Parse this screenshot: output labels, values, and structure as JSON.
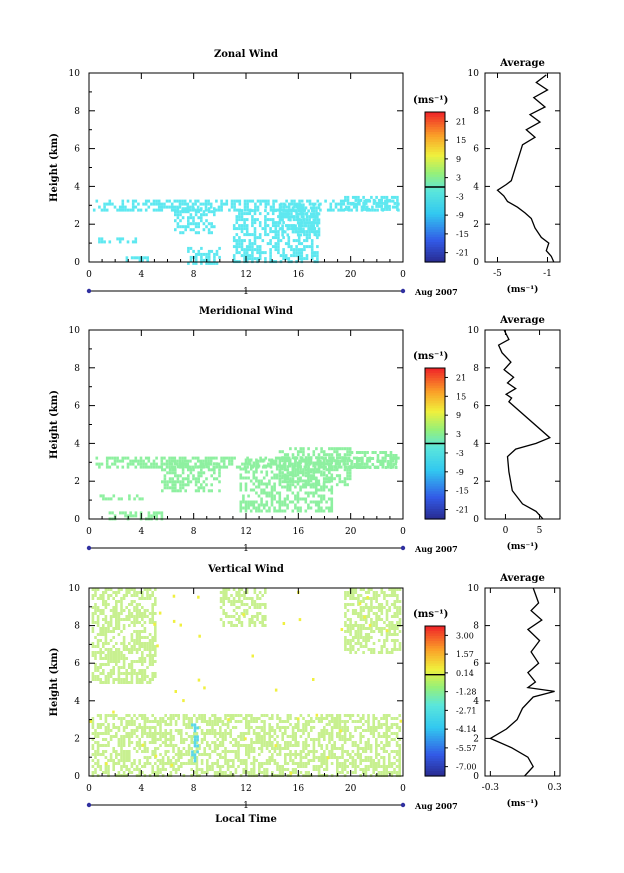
{
  "chart_data": [
    {
      "type": "heatmap",
      "title": "Zonal Wind",
      "ylabel": "Height (km)",
      "xlabel": "",
      "x_ticks": [
        "0",
        "4",
        "8",
        "12",
        "16",
        "20",
        "0"
      ],
      "y_ticks": [
        "0",
        "2",
        "4",
        "6",
        "8",
        "10"
      ],
      "xlim": [
        0,
        24
      ],
      "ylim": [
        0,
        10
      ],
      "day_label": "1",
      "date_label": "Aug 2007",
      "colorbar": {
        "unit": "(ms⁻¹)",
        "ticks": [
          "21",
          "15",
          "9",
          "3",
          "-3",
          "-9",
          "-15",
          "-21"
        ],
        "range": [
          -24,
          24
        ],
        "zero_line": 0
      },
      "color_dominant": "#5ee8f0",
      "regions": [
        {
          "x0": 0.3,
          "x1": 23.6,
          "y0": 2.7,
          "y1": 3.3
        },
        {
          "x0": 6.5,
          "x1": 9.5,
          "y0": 1.5,
          "y1": 2.9
        },
        {
          "x0": 11.0,
          "x1": 17.5,
          "y0": 0.0,
          "y1": 2.8
        },
        {
          "x0": 14.5,
          "x1": 17.5,
          "y0": 1.5,
          "y1": 3.1
        },
        {
          "x0": 0.5,
          "x1": 4.0,
          "y0": 1.0,
          "y1": 1.3
        },
        {
          "x0": 2.8,
          "x1": 4.5,
          "y0": 0.0,
          "y1": 0.3
        },
        {
          "x0": 7.5,
          "x1": 10.0,
          "y0": 0.0,
          "y1": 0.8
        },
        {
          "x0": 19.5,
          "x1": 23.5,
          "y0": 2.8,
          "y1": 3.5
        }
      ],
      "average_profile": {
        "title": "Average",
        "xlabel": "(ms⁻¹)",
        "x_ticks": [
          "-5",
          "-1"
        ],
        "xlim": [
          -6,
          0
        ],
        "points": [
          [
            -0.5,
            0
          ],
          [
            -0.7,
            0.3
          ],
          [
            -1.1,
            0.6
          ],
          [
            -0.9,
            1.0
          ],
          [
            -1.5,
            1.3
          ],
          [
            -2.0,
            1.8
          ],
          [
            -2.3,
            2.3
          ],
          [
            -2.8,
            2.6
          ],
          [
            -3.4,
            2.9
          ],
          [
            -4.2,
            3.2
          ],
          [
            -4.5,
            3.5
          ],
          [
            -5.0,
            3.8
          ],
          [
            -4.3,
            4.1
          ],
          [
            -3.9,
            4.3
          ],
          [
            -3.0,
            6.2
          ],
          [
            -2.0,
            6.6
          ],
          [
            -2.7,
            7.0
          ],
          [
            -1.6,
            7.4
          ],
          [
            -2.4,
            7.8
          ],
          [
            -1.2,
            8.2
          ],
          [
            -2.1,
            8.7
          ],
          [
            -1.0,
            9.1
          ],
          [
            -1.9,
            9.5
          ],
          [
            -1.1,
            9.9
          ]
        ]
      }
    },
    {
      "type": "heatmap",
      "title": "Meridional Wind",
      "ylabel": "Height (km)",
      "xlabel": "",
      "x_ticks": [
        "0",
        "4",
        "8",
        "12",
        "16",
        "20",
        "0"
      ],
      "y_ticks": [
        "0",
        "2",
        "4",
        "6",
        "8",
        "10"
      ],
      "xlim": [
        0,
        24
      ],
      "ylim": [
        0,
        10
      ],
      "day_label": "1",
      "date_label": "Aug 2007",
      "colorbar": {
        "unit": "(ms⁻¹)",
        "ticks": [
          "21",
          "15",
          "9",
          "3",
          "-3",
          "-9",
          "-15",
          "-21"
        ],
        "range": [
          -24,
          24
        ],
        "zero_line": 0
      },
      "color_dominant": "#8ef0a0",
      "regions": [
        {
          "x0": 0.3,
          "x1": 23.6,
          "y0": 2.8,
          "y1": 3.3
        },
        {
          "x0": 5.5,
          "x1": 10.0,
          "y0": 1.5,
          "y1": 3.0
        },
        {
          "x0": 11.5,
          "x1": 18.5,
          "y0": 0.5,
          "y1": 3.2
        },
        {
          "x0": 14.5,
          "x1": 20.0,
          "y0": 1.8,
          "y1": 3.8
        },
        {
          "x0": 1.5,
          "x1": 5.5,
          "y0": 0.0,
          "y1": 0.4
        },
        {
          "x0": 0.8,
          "x1": 4.0,
          "y0": 1.0,
          "y1": 1.3
        },
        {
          "x0": 20.0,
          "x1": 23.5,
          "y0": 2.8,
          "y1": 3.6
        }
      ],
      "average_profile": {
        "title": "Average",
        "xlabel": "(ms⁻¹)",
        "x_ticks": [
          "0",
          "5"
        ],
        "xlim": [
          -3,
          8
        ],
        "points": [
          [
            5.5,
            0
          ],
          [
            4.5,
            0.4
          ],
          [
            2.5,
            0.8
          ],
          [
            1.0,
            1.5
          ],
          [
            0.5,
            2.5
          ],
          [
            0.3,
            3.3
          ],
          [
            1.5,
            3.7
          ],
          [
            4.5,
            4.0
          ],
          [
            6.5,
            4.3
          ],
          [
            0.5,
            6.2
          ],
          [
            0.9,
            6.4
          ],
          [
            0.1,
            6.6
          ],
          [
            1.5,
            6.9
          ],
          [
            0.3,
            7.2
          ],
          [
            1.2,
            7.5
          ],
          [
            -0.2,
            7.9
          ],
          [
            0.8,
            8.3
          ],
          [
            -0.5,
            8.8
          ],
          [
            -1.0,
            9.2
          ],
          [
            0.5,
            9.5
          ],
          [
            -0.2,
            10
          ]
        ]
      }
    },
    {
      "type": "heatmap",
      "title": "Vertical Wind",
      "ylabel": "Height (km)",
      "xlabel": "Local Time",
      "x_ticks": [
        "0",
        "4",
        "8",
        "12",
        "16",
        "20",
        "0"
      ],
      "y_ticks": [
        "0",
        "2",
        "4",
        "6",
        "8",
        "10"
      ],
      "xlim": [
        0,
        24
      ],
      "ylim": [
        0,
        10
      ],
      "day_label": "1",
      "date_label": "Aug 2007",
      "colorbar": {
        "unit": "(ms⁻¹)",
        "ticks": [
          "3.00",
          "1.57",
          "0.14",
          "-1.28",
          "-2.71",
          "-4.14",
          "-5.57",
          "-7.00"
        ],
        "range": [
          -7.7,
          3.7
        ],
        "zero_line": 0
      },
      "color_dominant": "#c8f090",
      "regions": [
        {
          "x0": 0.2,
          "x1": 23.8,
          "y0": 0.0,
          "y1": 3.3
        },
        {
          "x0": 0.2,
          "x1": 5.0,
          "y0": 5.0,
          "y1": 10.0
        },
        {
          "x0": 19.5,
          "x1": 23.8,
          "y0": 6.5,
          "y1": 10.0
        },
        {
          "x0": 10.0,
          "x1": 13.5,
          "y0": 8.0,
          "y1": 10.0
        },
        {
          "x0": 7.8,
          "x1": 8.3,
          "y0": 0.8,
          "y1": 2.8
        }
      ],
      "average_profile": {
        "title": "Average",
        "xlabel": "(ms⁻¹)",
        "x_ticks": [
          "-0.3",
          "0.3"
        ],
        "xlim": [
          -0.35,
          0.35
        ],
        "points": [
          [
            0.02,
            0
          ],
          [
            0.1,
            0.5
          ],
          [
            0.05,
            1.0
          ],
          [
            -0.1,
            1.5
          ],
          [
            -0.3,
            2.0
          ],
          [
            -0.15,
            2.5
          ],
          [
            -0.05,
            3.0
          ],
          [
            0.0,
            3.6
          ],
          [
            0.1,
            4.2
          ],
          [
            0.3,
            4.5
          ],
          [
            0.05,
            4.7
          ],
          [
            0.12,
            5.0
          ],
          [
            0.05,
            5.5
          ],
          [
            0.15,
            6.0
          ],
          [
            0.08,
            6.6
          ],
          [
            0.16,
            7.2
          ],
          [
            0.05,
            7.8
          ],
          [
            0.18,
            8.3
          ],
          [
            0.08,
            8.8
          ],
          [
            0.15,
            9.2
          ],
          [
            0.1,
            10
          ]
        ]
      }
    }
  ]
}
